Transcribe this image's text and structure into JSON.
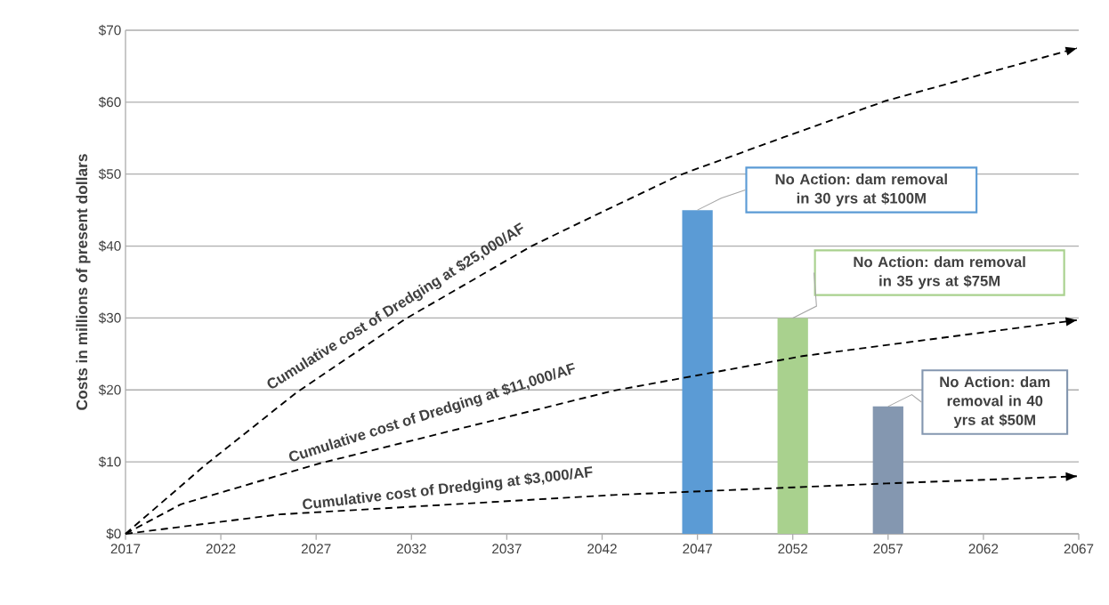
{
  "chart_data": {
    "type": "bar",
    "ylabel": "Costs in millions of present dollars",
    "xlim": [
      2017,
      2067
    ],
    "xticks": [
      2017,
      2022,
      2027,
      2032,
      2037,
      2042,
      2047,
      2052,
      2057,
      2062,
      2067
    ],
    "ylim": [
      0,
      70
    ],
    "yticks": [
      {
        "value": 0,
        "label": "$0"
      },
      {
        "value": 10,
        "label": "$10"
      },
      {
        "value": 20,
        "label": "$20"
      },
      {
        "value": 30,
        "label": "$30"
      },
      {
        "value": 40,
        "label": "$40"
      },
      {
        "value": 50,
        "label": "$50"
      },
      {
        "value": 60,
        "label": "$60"
      },
      {
        "value": 70,
        "label": "$70"
      }
    ],
    "grid": "y",
    "marker": "none",
    "line_style": "dashed",
    "series": [
      {
        "x": [
          2047,
          2052,
          2057
        ],
        "values": [
          45,
          30,
          17.7
        ],
        "colors": [
          "#5b9bd5",
          "#a9d18e",
          "#8497b0"
        ]
      },
      {
        "type": "line",
        "name": "Cumulative cost of Dredging at $25,000/AF",
        "color": "#000000",
        "x": [
          2017,
          2021.2,
          2026,
          2031.7,
          2038.3,
          2042.2,
          2046.1,
          2051.5,
          2056.9,
          2066.9
        ],
        "values": [
          0,
          9.6,
          19.7,
          29.9,
          40,
          45,
          49.9,
          55.1,
          60.2,
          67.5
        ]
      },
      {
        "type": "line",
        "name": "Cumulative cost of Dredging at $11,000/AF",
        "color": "#000000",
        "x": [
          2017,
          2019.9,
          2027.2,
          2042.6,
          2052.5,
          2066.9
        ],
        "values": [
          0,
          4.1,
          9.8,
          19.9,
          24.7,
          29.7
        ]
      },
      {
        "type": "line",
        "name": "Cumulative cost of Dredging at $3,000/AF",
        "color": "#000000",
        "x": [
          2017,
          2025.1,
          2042.6,
          2056.9,
          2066.9
        ],
        "values": [
          0,
          2.7,
          5.4,
          7.0,
          8.0
        ]
      }
    ],
    "annotations": [
      "No Action: dam removal in 30 yrs at $100M",
      "No Action: dam removal in 35 yrs at $75M",
      "No Action: dam removal in 40 yrs at $50M"
    ]
  }
}
